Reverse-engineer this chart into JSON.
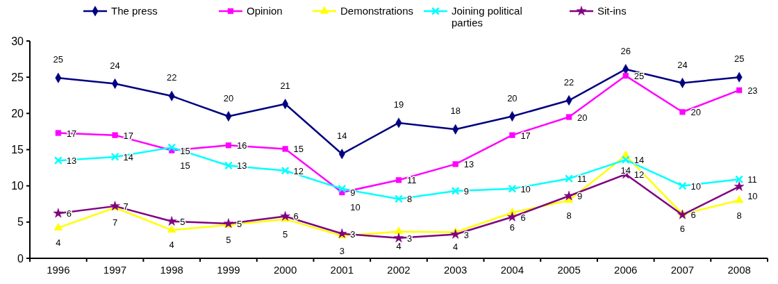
{
  "chart_data": {
    "type": "line",
    "categories": [
      "1996",
      "1997",
      "1998",
      "1999",
      "2000",
      "2001",
      "2002",
      "2003",
      "2004",
      "2005",
      "2006",
      "2007",
      "2008"
    ],
    "series": [
      {
        "name": "The press",
        "color": "#000080",
        "marker": "diamond",
        "values": [
          24.9,
          24.1,
          22.4,
          19.6,
          21.3,
          14.4,
          18.7,
          17.8,
          19.6,
          21.8,
          26.1,
          24.2,
          25.0
        ],
        "value_labels": [
          "25",
          "24",
          "22",
          "20",
          "21",
          "14",
          "19",
          "18",
          "20",
          "22",
          "26",
          "24",
          "25"
        ]
      },
      {
        "name": "Opinion",
        "color": "#ff00ff",
        "marker": "square",
        "values": [
          17.3,
          17.0,
          14.9,
          15.6,
          15.1,
          9.1,
          10.8,
          13.0,
          17.0,
          19.5,
          25.2,
          20.2,
          23.2
        ],
        "value_labels": [
          "17",
          "17",
          "15",
          "16",
          "15",
          "9",
          "11",
          "13",
          "17",
          "20",
          "25",
          "20",
          "23"
        ]
      },
      {
        "name": "Demonstrations",
        "color": "#ffff00",
        "marker": "triangle",
        "values": [
          4.2,
          7.0,
          3.9,
          4.6,
          5.4,
          3.1,
          3.7,
          3.6,
          6.3,
          8.0,
          14.2,
          6.1,
          8.0
        ],
        "value_labels": [
          "4",
          "7",
          "4",
          "5",
          "5",
          "3",
          "4",
          "4",
          "6",
          "8",
          "14",
          "6",
          "8"
        ]
      },
      {
        "name": "Joining political parties",
        "color": "#00ffff",
        "marker": "cross",
        "values": [
          13.5,
          14.0,
          15.3,
          12.8,
          12.1,
          9.6,
          8.2,
          9.3,
          9.6,
          11.0,
          13.6,
          10.0,
          10.9
        ],
        "value_labels": [
          "13",
          "14",
          "15",
          "13",
          "12",
          "10",
          "8",
          "9",
          "10",
          "11",
          "14",
          "10",
          "11"
        ]
      },
      {
        "name": "Sit-ins",
        "color": "#800080",
        "marker": "star",
        "values": [
          6.2,
          7.2,
          5.1,
          4.8,
          5.8,
          3.4,
          2.8,
          3.3,
          5.7,
          8.6,
          11.6,
          6.0,
          9.9
        ],
        "value_labels": [
          "6",
          "7",
          "5",
          "5",
          "6",
          "3",
          "3",
          "3",
          "6",
          "9",
          "12",
          "6",
          "10"
        ]
      }
    ],
    "ylim": [
      0,
      30
    ],
    "yticks": [
      0,
      5,
      10,
      15,
      20,
      25,
      30
    ],
    "grid": false,
    "legend": "top",
    "line_style": "solid"
  }
}
